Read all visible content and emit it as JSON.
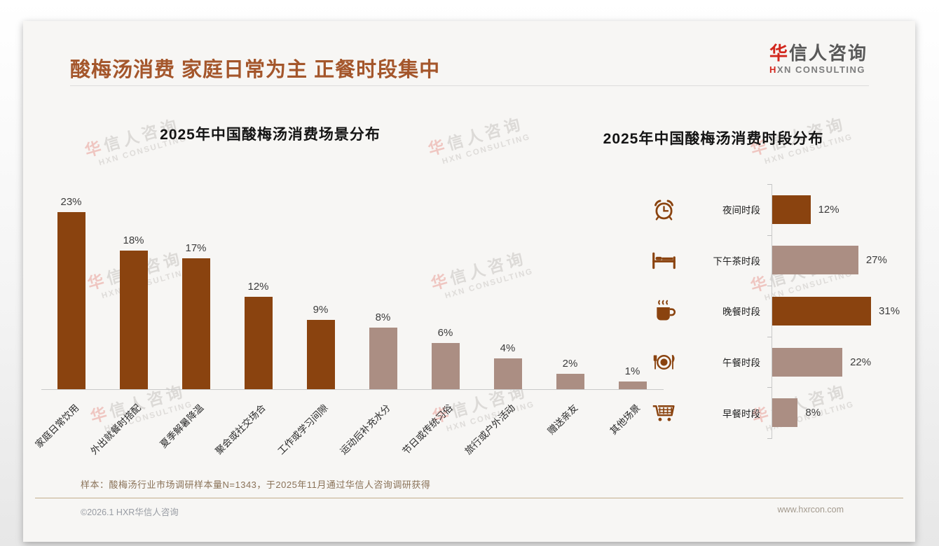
{
  "header": {
    "title": "酸梅汤消费 家庭日常为主 正餐时段集中",
    "logo": {
      "name_accent": "华",
      "name_rest": "信人咨询",
      "tagline_accent": "H",
      "tagline_rest": "XN CONSULTING"
    }
  },
  "watermark": {
    "line1_accent": "华",
    "line1_rest": "信人咨询",
    "line2": "HXN CONSULTING"
  },
  "chart_data": [
    {
      "type": "bar",
      "orientation": "vertical",
      "title": "2025年中国酸梅汤消费场景分布",
      "unit": "%",
      "categories": [
        "家庭日常饮用",
        "外出就餐时搭配",
        "夏季解暑降温",
        "聚会或社交场合",
        "工作或学习间隙",
        "运动后补充水分",
        "节日或传统习俗",
        "旅行或户外活动",
        "赠送亲友",
        "其他场景"
      ],
      "values": [
        23,
        18,
        17,
        12,
        9,
        8,
        6,
        4,
        2,
        1
      ],
      "value_labels": [
        "23%",
        "18%",
        "17%",
        "12%",
        "9%",
        "8%",
        "6%",
        "4%",
        "2%",
        "1%"
      ],
      "bar_palette": [
        "dark",
        "dark",
        "dark",
        "dark",
        "dark",
        "light",
        "light",
        "light",
        "light",
        "light"
      ],
      "ylim": [
        0,
        25
      ],
      "grid": false,
      "legend": "none"
    },
    {
      "type": "bar",
      "orientation": "horizontal",
      "title": "2025年中国酸梅汤消费时段分布",
      "unit": "%",
      "categories": [
        "夜间时段",
        "下午茶时段",
        "晚餐时段",
        "午餐时段",
        "早餐时段"
      ],
      "values": [
        12,
        27,
        31,
        22,
        8
      ],
      "value_labels": [
        "12%",
        "27%",
        "31%",
        "22%",
        "8%"
      ],
      "bar_palette": [
        "dark",
        "light",
        "dark",
        "light",
        "light"
      ],
      "icons": [
        "alarm-clock-icon",
        "bed-icon",
        "hot-drink-icon",
        "dining-plate-icon",
        "shopping-cart-icon"
      ],
      "xlim": [
        0,
        35
      ],
      "grid": false,
      "legend": "none"
    }
  ],
  "colors": {
    "bar_dark": "#8a430f",
    "bar_light": "#ab8e83",
    "title_text": "#a4562b",
    "logo_accent": "#d2261c"
  },
  "footer": {
    "note": "样本：酸梅汤行业市场调研样本量N=1343，于2025年11月通过华信人咨询调研获得",
    "copyright": "©2026.1 HXR华信人咨询",
    "website": "www.hxrcon.com"
  }
}
